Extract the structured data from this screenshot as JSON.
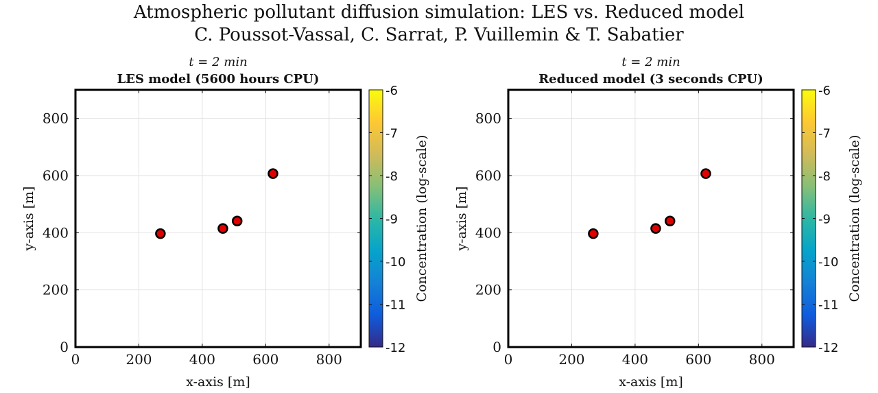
{
  "figure": {
    "title_line1": "Atmospheric pollutant diffusion simulation: LES vs. Reduced model",
    "title_line2": "C. Poussot-Vassal, C. Sarrat, P. Vuillemin & T. Sabatier"
  },
  "colormap": [
    "#352a87",
    "#0f5cdd",
    "#1481d6",
    "#06a4ca",
    "#2eb7a4",
    "#87bf77",
    "#d1bb59",
    "#fec832",
    "#f9fb0e"
  ],
  "marker_color": "#e00000",
  "chart_data": [
    {
      "type": "scatter",
      "subtitle": "t = 2 min",
      "title": "LES model (5600 hours CPU)",
      "xlabel": "x-axis [m]",
      "ylabel": "y-axis [m]",
      "xlim": [
        0,
        900
      ],
      "ylim": [
        0,
        900
      ],
      "xticks": [
        0,
        200,
        400,
        600,
        800
      ],
      "yticks": [
        0,
        200,
        400,
        600,
        800
      ],
      "grid": true,
      "points": [
        {
          "x": 268,
          "y": 397
        },
        {
          "x": 465,
          "y": 415
        },
        {
          "x": 510,
          "y": 441
        },
        {
          "x": 623,
          "y": 607
        }
      ],
      "colorbar": {
        "label": "Concentration (log-scale)",
        "range": [
          -12,
          -6
        ],
        "ticks": [
          -6,
          -7,
          -8,
          -9,
          -10,
          -11,
          -12
        ]
      }
    },
    {
      "type": "scatter",
      "subtitle": "t = 2 min",
      "title": "Reduced model (3 seconds CPU)",
      "xlabel": "x-axis [m]",
      "ylabel": "y-axis [m]",
      "xlim": [
        0,
        900
      ],
      "ylim": [
        0,
        900
      ],
      "xticks": [
        0,
        200,
        400,
        600,
        800
      ],
      "yticks": [
        0,
        200,
        400,
        600,
        800
      ],
      "grid": true,
      "points": [
        {
          "x": 268,
          "y": 397
        },
        {
          "x": 465,
          "y": 415
        },
        {
          "x": 510,
          "y": 441
        },
        {
          "x": 623,
          "y": 607
        }
      ],
      "colorbar": {
        "label": "Concentration (log-scale)",
        "range": [
          -12,
          -6
        ],
        "ticks": [
          -6,
          -7,
          -8,
          -9,
          -10,
          -11,
          -12
        ]
      }
    }
  ]
}
